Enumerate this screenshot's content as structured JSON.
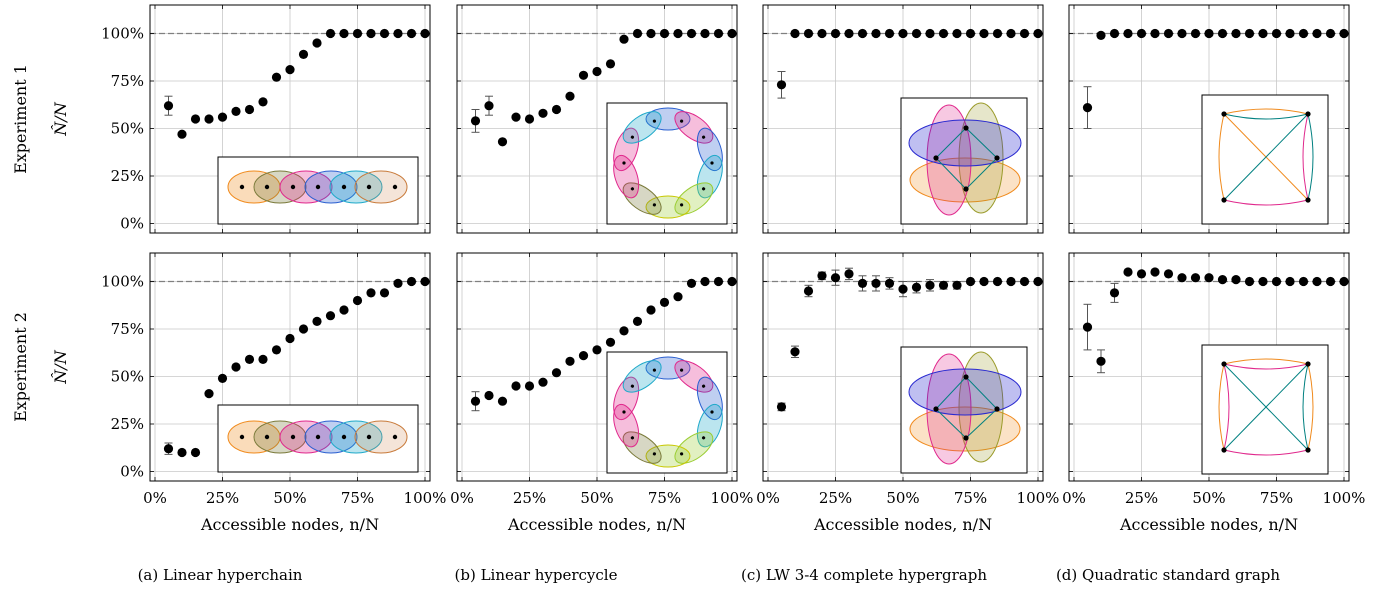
{
  "row_labels": [
    "Experiment 1",
    "Experiment 2"
  ],
  "ylabel": "N̂/N",
  "xlabel": "Accessible nodes, n/N",
  "x_ticks": [
    "0%",
    "25%",
    "50%",
    "75%",
    "100%"
  ],
  "y_ticks": [
    "0%",
    "25%",
    "50%",
    "75%",
    "100%"
  ],
  "captions": [
    "(a) Linear hyperchain",
    "(b) Linear hypercycle",
    "(c) LW 3-4 complete hypergraph",
    "(d) Quadratic standard graph"
  ],
  "colors": {
    "marker": "#000000",
    "reference_line": "#808080",
    "grid": "#c8c8c8",
    "hyperedges": [
      "#f08a1c",
      "#7a7a3a",
      "#e0288c",
      "#2a5fd0",
      "#1fa9c9",
      "#c87a3a",
      "#9acd32",
      "#008080"
    ]
  },
  "chart_data": [
    {
      "type": "scatter",
      "panel": "(a) Linear hyperchain",
      "experiment": "Experiment 1",
      "xlim": [
        0,
        100
      ],
      "ylim": [
        0,
        110
      ],
      "reference_y": 100,
      "grid": true,
      "x": [
        5,
        10,
        15,
        20,
        25,
        30,
        35,
        40,
        45,
        50,
        55,
        60,
        65,
        70,
        75,
        80,
        85,
        90,
        95,
        100
      ],
      "y": [
        62,
        47,
        55,
        55,
        56,
        59,
        60,
        64,
        77,
        81,
        89,
        95,
        100,
        100,
        100,
        100,
        100,
        100,
        100,
        100
      ],
      "err": [
        5,
        0,
        0,
        0,
        0,
        0,
        0,
        0,
        0,
        0,
        0,
        0,
        0,
        0,
        0,
        0,
        0,
        0,
        0,
        0
      ]
    },
    {
      "type": "scatter",
      "panel": "(b) Linear hypercycle",
      "experiment": "Experiment 1",
      "xlim": [
        0,
        100
      ],
      "ylim": [
        0,
        110
      ],
      "reference_y": 100,
      "grid": true,
      "x": [
        5,
        10,
        15,
        20,
        25,
        30,
        35,
        40,
        45,
        50,
        55,
        60,
        65,
        70,
        75,
        80,
        85,
        90,
        95,
        100
      ],
      "y": [
        54,
        62,
        43,
        56,
        55,
        58,
        60,
        67,
        78,
        80,
        84,
        97,
        100,
        100,
        100,
        100,
        100,
        100,
        100,
        100
      ],
      "err": [
        6,
        5,
        0,
        0,
        0,
        0,
        0,
        0,
        0,
        0,
        0,
        0,
        0,
        0,
        0,
        0,
        0,
        0,
        0,
        0
      ]
    },
    {
      "type": "scatter",
      "panel": "(c) LW 3-4 complete hypergraph",
      "experiment": "Experiment 1",
      "xlim": [
        0,
        100
      ],
      "ylim": [
        0,
        110
      ],
      "reference_y": 100,
      "grid": true,
      "x": [
        5,
        10,
        15,
        20,
        25,
        30,
        35,
        40,
        45,
        50,
        55,
        60,
        65,
        70,
        75,
        80,
        85,
        90,
        95,
        100
      ],
      "y": [
        73,
        100,
        100,
        100,
        100,
        100,
        100,
        100,
        100,
        100,
        100,
        100,
        100,
        100,
        100,
        100,
        100,
        100,
        100,
        100
      ],
      "err": [
        7,
        0,
        0,
        0,
        0,
        0,
        0,
        0,
        0,
        0,
        0,
        0,
        0,
        0,
        0,
        0,
        0,
        0,
        0,
        0
      ]
    },
    {
      "type": "scatter",
      "panel": "(d) Quadratic standard graph",
      "experiment": "Experiment 1",
      "xlim": [
        0,
        100
      ],
      "ylim": [
        0,
        110
      ],
      "reference_y": 100,
      "grid": true,
      "x": [
        5,
        10,
        15,
        20,
        25,
        30,
        35,
        40,
        45,
        50,
        55,
        60,
        65,
        70,
        75,
        80,
        85,
        90,
        95,
        100
      ],
      "y": [
        61,
        99,
        100,
        100,
        100,
        100,
        100,
        100,
        100,
        100,
        100,
        100,
        100,
        100,
        100,
        100,
        100,
        100,
        100,
        100
      ],
      "err": [
        11,
        0,
        0,
        0,
        0,
        0,
        0,
        0,
        0,
        0,
        0,
        0,
        0,
        0,
        0,
        0,
        0,
        0,
        0,
        0
      ]
    },
    {
      "type": "scatter",
      "panel": "(a) Linear hyperchain",
      "experiment": "Experiment 2",
      "xlim": [
        0,
        100
      ],
      "ylim": [
        0,
        110
      ],
      "reference_y": 100,
      "grid": true,
      "x": [
        5,
        10,
        15,
        20,
        25,
        30,
        35,
        40,
        45,
        50,
        55,
        60,
        65,
        70,
        75,
        80,
        85,
        90,
        95,
        100
      ],
      "y": [
        12,
        10,
        10,
        41,
        49,
        55,
        59,
        59,
        64,
        70,
        75,
        79,
        82,
        85,
        90,
        94,
        94,
        99,
        100,
        100
      ],
      "err": [
        3,
        0,
        0,
        0,
        0,
        0,
        0,
        0,
        0,
        0,
        0,
        0,
        0,
        0,
        0,
        0,
        0,
        0,
        0,
        0
      ]
    },
    {
      "type": "scatter",
      "panel": "(b) Linear hypercycle",
      "experiment": "Experiment 2",
      "xlim": [
        0,
        100
      ],
      "ylim": [
        0,
        110
      ],
      "reference_y": 100,
      "grid": true,
      "x": [
        5,
        10,
        15,
        20,
        25,
        30,
        35,
        40,
        45,
        50,
        55,
        60,
        65,
        70,
        75,
        80,
        85,
        90,
        95,
        100
      ],
      "y": [
        37,
        40,
        37,
        45,
        45,
        47,
        52,
        58,
        61,
        64,
        68,
        74,
        79,
        85,
        89,
        92,
        99,
        100,
        100,
        100
      ],
      "err": [
        5,
        0,
        0,
        0,
        0,
        0,
        0,
        0,
        0,
        0,
        0,
        0,
        0,
        0,
        0,
        0,
        0,
        0,
        0,
        0
      ]
    },
    {
      "type": "scatter",
      "panel": "(c) LW 3-4 complete hypergraph",
      "experiment": "Experiment 2",
      "xlim": [
        0,
        100
      ],
      "ylim": [
        0,
        110
      ],
      "reference_y": 100,
      "grid": true,
      "x": [
        5,
        10,
        15,
        20,
        25,
        30,
        35,
        40,
        45,
        50,
        55,
        60,
        65,
        70,
        75,
        80,
        85,
        90,
        95,
        100
      ],
      "y": [
        34,
        63,
        95,
        103,
        102,
        104,
        99,
        99,
        99,
        96,
        97,
        98,
        98,
        98,
        100,
        100,
        100,
        100,
        100,
        100
      ],
      "err": [
        2,
        3,
        3,
        2,
        4,
        3,
        4,
        4,
        3,
        4,
        3,
        3,
        2,
        2,
        1,
        1,
        1,
        1,
        1,
        1
      ]
    },
    {
      "type": "scatter",
      "panel": "(d) Quadratic standard graph",
      "experiment": "Experiment 2",
      "xlim": [
        0,
        100
      ],
      "ylim": [
        0,
        110
      ],
      "reference_y": 100,
      "grid": true,
      "x": [
        5,
        10,
        15,
        20,
        25,
        30,
        35,
        40,
        45,
        50,
        55,
        60,
        65,
        70,
        75,
        80,
        85,
        90,
        95,
        100
      ],
      "y": [
        76,
        58,
        94,
        105,
        104,
        105,
        104,
        102,
        102,
        102,
        101,
        101,
        100,
        100,
        100,
        100,
        100,
        100,
        100,
        100
      ],
      "err": [
        12,
        6,
        5,
        0,
        0,
        0,
        0,
        0,
        0,
        0,
        0,
        0,
        0,
        0,
        0,
        0,
        0,
        0,
        0,
        0
      ]
    }
  ]
}
